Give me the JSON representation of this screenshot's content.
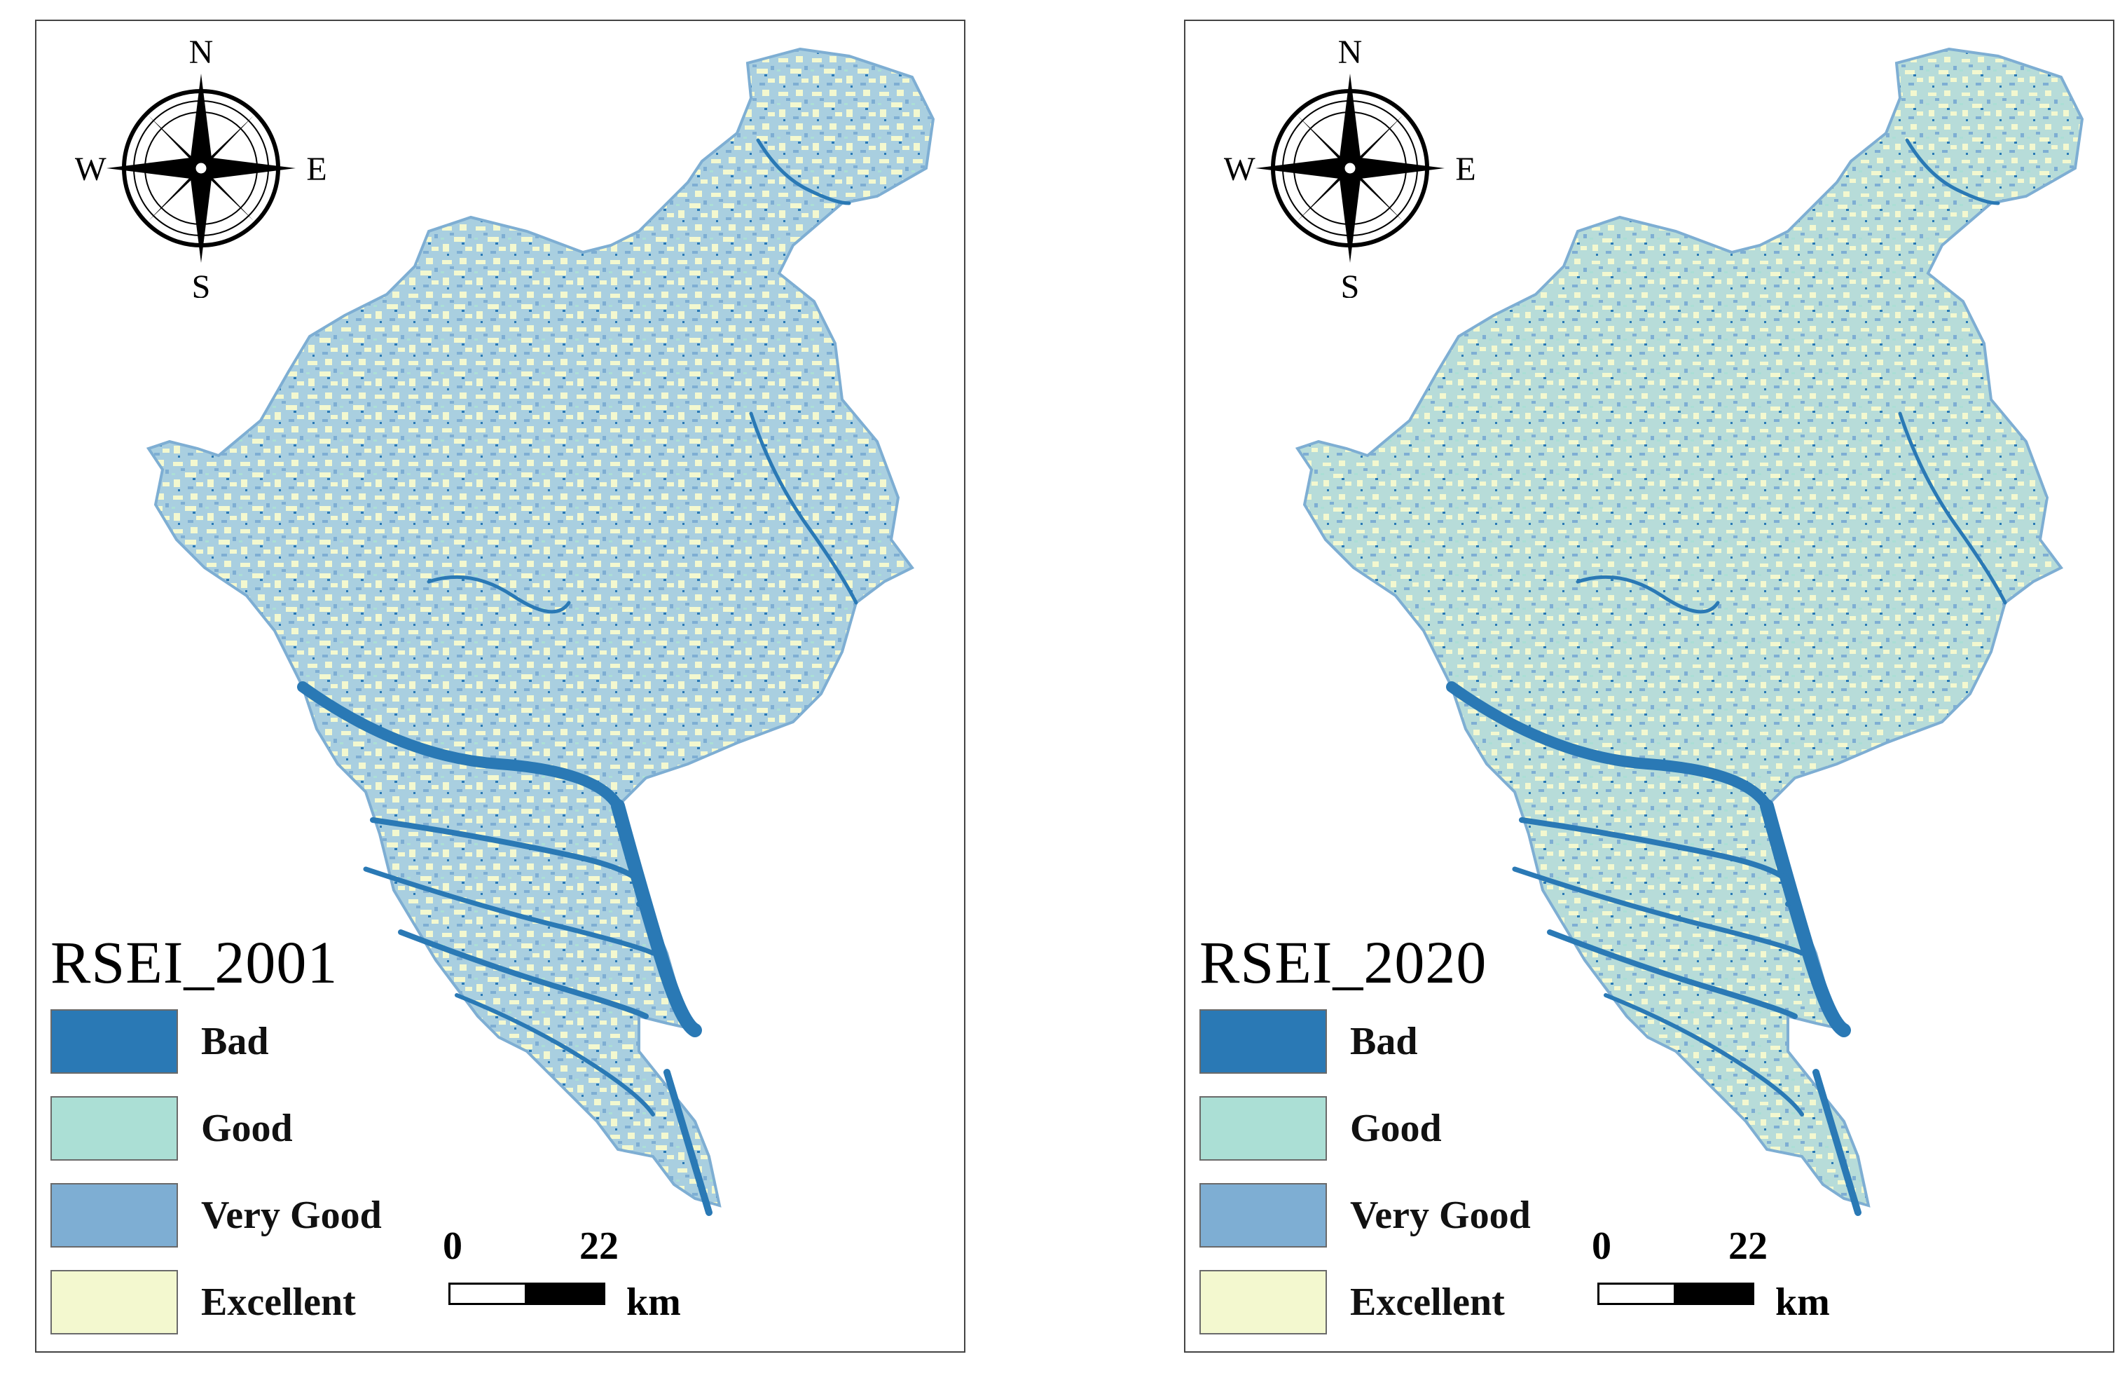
{
  "colors": {
    "bad": "#2a79b5",
    "good": "#abdfd5",
    "very_good": "#7eaed3",
    "excellent": "#f3f8cf",
    "frame": "#444444"
  },
  "compass": {
    "north": "N",
    "south": "S",
    "east": "E",
    "west": "W"
  },
  "panels": [
    {
      "title": "RSEI_2001",
      "legend": [
        {
          "label": "Bad",
          "color": "#2a79b5"
        },
        {
          "label": "Good",
          "color": "#abdfd5"
        },
        {
          "label": "Very Good",
          "color": "#7eaed3"
        },
        {
          "label": "Excellent",
          "color": "#f3f8cf"
        }
      ],
      "scalebar": {
        "start": "0",
        "end": "22",
        "unit": "km"
      }
    },
    {
      "title": "RSEI_2020",
      "legend": [
        {
          "label": "Bad",
          "color": "#2a79b5"
        },
        {
          "label": "Good",
          "color": "#abdfd5"
        },
        {
          "label": "Very Good",
          "color": "#7eaed3"
        },
        {
          "label": "Excellent",
          "color": "#f3f8cf"
        }
      ],
      "scalebar": {
        "start": "0",
        "end": "22",
        "unit": "km"
      }
    }
  ]
}
